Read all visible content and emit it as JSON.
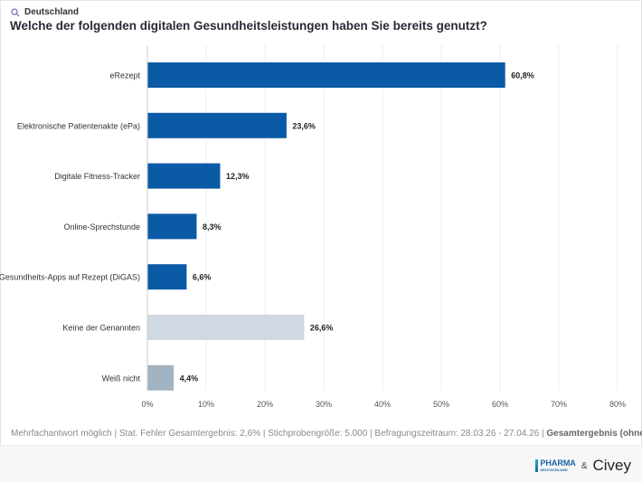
{
  "header": {
    "region": "Deutschland",
    "title": "Welche der folgenden digitalen Gesundheitsleistungen haben Sie bereits genutzt?"
  },
  "footer": {
    "note": "Mehrfachantwort möglich | Stat. Fehler Gesamtergebnis: 2,6% | Stichprobengröße: 5.000 | Befragungszeitraum: 28.03.26 - 27.04.26 | ",
    "filter": "Gesamtergebnis (ohne Filter)"
  },
  "logos": {
    "pharma_line1": "PHARMA",
    "pharma_line2": "DEUTSCHLAND",
    "amp": "&",
    "civey": "Civey"
  },
  "colors": {
    "primary": "#0a5aa6",
    "none": "#d0d9e1",
    "unknown": "#a2b4c1",
    "grid": "#eeeeee"
  },
  "chart_data": {
    "type": "bar",
    "orientation": "horizontal",
    "categories": [
      "eRezept",
      "Elektronische Patientenakte (ePa)",
      "Digitale Fitness-Tracker",
      "Online-Sprechstunde",
      "Gesundheits-Apps auf Rezept (DiGAS)",
      "Keine der Genannten",
      "Weiß nicht"
    ],
    "values": [
      60.8,
      23.6,
      12.3,
      8.3,
      6.6,
      26.6,
      4.4
    ],
    "value_labels": [
      "60,8%",
      "23,6%",
      "12,3%",
      "8,3%",
      "6,6%",
      "26,6%",
      "4,4%"
    ],
    "bar_colors": [
      "#0a5aa6",
      "#0a5aa6",
      "#0a5aa6",
      "#0a5aa6",
      "#0a5aa6",
      "#d0d9e1",
      "#a2b4c1"
    ],
    "xlim": [
      0,
      80
    ],
    "ticks": [
      0,
      10,
      20,
      30,
      40,
      50,
      60,
      70,
      80
    ],
    "tick_labels": [
      "0%",
      "10%",
      "20%",
      "30%",
      "40%",
      "50%",
      "60%",
      "70%",
      "80%"
    ],
    "grid": true
  }
}
